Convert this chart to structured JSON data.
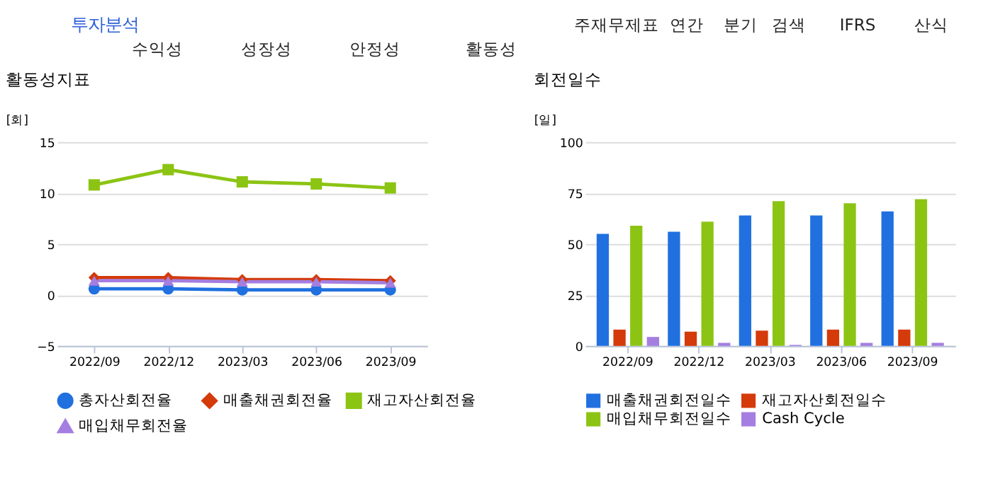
{
  "chart_data": [
    {
      "type": "line",
      "title": "활동성지표",
      "ylabel": "[회]",
      "annotations": [
        "투자분석",
        "수익성",
        "성장성",
        "안정성",
        "활동성",
        "주재무제표",
        "연간",
        "분기",
        "검색",
        "IFRS",
        "산식"
      ],
      "categories": [
        "2022/09",
        "2022/12",
        "2023/03",
        "2023/06",
        "2023/09"
      ],
      "series": [
        {
          "name": "총자산회전율",
          "color": "#2070e0",
          "marker": "circle",
          "values": [
            0.6,
            0.6,
            0.5,
            0.5,
            0.5
          ]
        },
        {
          "name": "매출채권회전율",
          "color": "#d43a0a",
          "marker": "diamond",
          "values": [
            1.7,
            1.7,
            1.5,
            1.5,
            1.4
          ]
        },
        {
          "name": "재고자산회전율",
          "color": "#8cc414",
          "marker": "square",
          "values": [
            10.8,
            12.3,
            11.1,
            10.9,
            10.5
          ]
        },
        {
          "name": "매입채무회전율",
          "color": "#a47ee0",
          "marker": "triangle",
          "values": [
            1.4,
            1.4,
            1.3,
            1.3,
            1.2
          ]
        }
      ],
      "ylim": [
        -5,
        15
      ],
      "yticks": [
        -5,
        0,
        5,
        10,
        15
      ],
      "grid": "y",
      "legend": "bottom"
    },
    {
      "type": "bar",
      "title": "회전일수",
      "ylabel": "[일]",
      "categories": [
        "2022/09",
        "2022/12",
        "2023/03",
        "2023/06",
        "2023/09"
      ],
      "series": [
        {
          "name": "매출채권회전일수",
          "color": "#2070e0",
          "values": [
            55,
            56,
            64,
            64,
            66
          ]
        },
        {
          "name": "재고자산회전일수",
          "color": "#d43a0a",
          "values": [
            8,
            7,
            7.5,
            8,
            8
          ]
        },
        {
          "name": "매입채무회전일수",
          "color": "#8cc414",
          "values": [
            59,
            61,
            71,
            70,
            72
          ]
        },
        {
          "name": "Cash Cycle",
          "color": "#a47ee0",
          "values": [
            4.4,
            1.5,
            0.5,
            1.5,
            1.5
          ]
        }
      ],
      "ylim": [
        0,
        100
      ],
      "yticks": [
        0,
        25,
        50,
        75,
        100
      ],
      "grid": "y",
      "legend": "bottom"
    }
  ]
}
